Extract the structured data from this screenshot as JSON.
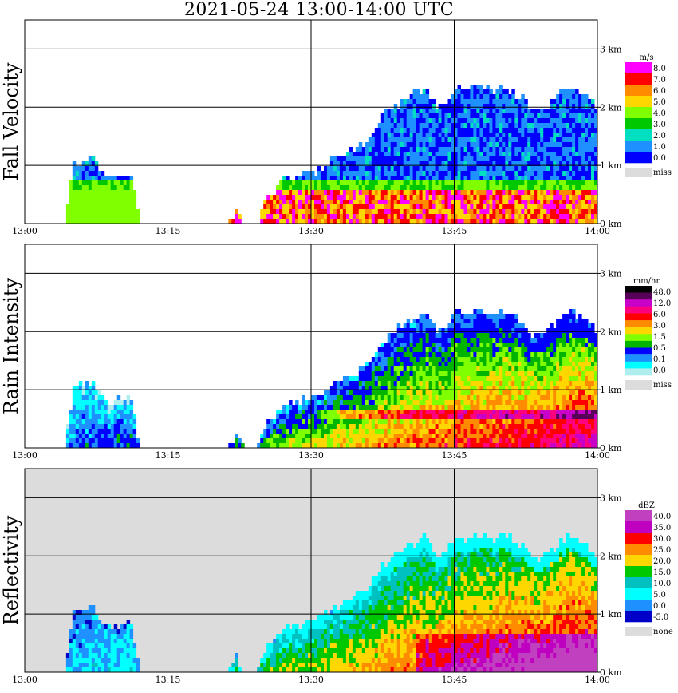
{
  "title": "2021-05-24   13:00-14:00 UTC",
  "chart_data": [
    {
      "type": "heatmap",
      "panel": "fall-velocity",
      "ylabel": "Fall Velocity",
      "background": "#ffffff",
      "x_ticks": [
        "13:00",
        "13:15",
        "13:30",
        "13:45",
        "14:00"
      ],
      "y_ticks": [
        "0 km",
        "1 km",
        "2 km",
        "3 km"
      ],
      "xlim_min": [
        0,
        60
      ],
      "ylim_km": [
        0,
        3.5
      ],
      "legend": {
        "unit": "m/s",
        "labels": [
          "8.0",
          "7.0",
          "6.0",
          "5.0",
          "4.0",
          "3.0",
          "2.0",
          "1.0",
          "0.0"
        ],
        "colors": [
          "#ff00ff",
          "#ff0000",
          "#ff8c00",
          "#ffd700",
          "#7fff00",
          "#00c800",
          "#00e0c0",
          "#1e90ff",
          "#0000ff"
        ],
        "miss_label": "miss",
        "miss_color": "#dcdcdc"
      },
      "echo_top_km": [
        0,
        0,
        0,
        0,
        0,
        1.1,
        1.1,
        1.2,
        0.9,
        0.8,
        0.9,
        0.9,
        0,
        0,
        0,
        0,
        0,
        0,
        0,
        0,
        0,
        0,
        0.3,
        0,
        0,
        0.4,
        0.6,
        0.8,
        0.8,
        0.9,
        0.9,
        1.0,
        1.1,
        1.2,
        1.3,
        1.4,
        1.5,
        1.8,
        2.0,
        2.1,
        2.2,
        2.3,
        2.4,
        2.0,
        2.1,
        2.4,
        2.3,
        2.4,
        2.4,
        2.3,
        2.4,
        2.3,
        2.2,
        2.0,
        2.0,
        2.1,
        2.3,
        2.4,
        2.3,
        2.2,
        2.0
      ],
      "fall_velocity_below_melting": "6.0-8.0",
      "fall_velocity_above_melting": "0.0-2.0"
    },
    {
      "type": "heatmap",
      "panel": "rain-intensity",
      "ylabel": "Rain Intensity",
      "background": "#ffffff",
      "x_ticks": [
        "13:00",
        "13:15",
        "13:30",
        "13:45",
        "14:00"
      ],
      "y_ticks": [
        "0 km",
        "1 km",
        "2 km",
        "3 km"
      ],
      "xlim_min": [
        0,
        60
      ],
      "ylim_km": [
        0,
        3.5
      ],
      "legend": {
        "unit": "mm/hr",
        "labels": [
          "48.0",
          "12.0",
          "6.0",
          "3.0",
          "1.5",
          "0.5",
          "0.1",
          "0.0"
        ],
        "colors": [
          "#000000",
          "#580058",
          "#c800c8",
          "#ff007f",
          "#ff0000",
          "#ff8c00",
          "#ffd700",
          "#7fff00",
          "#00b400",
          "#0000ff",
          "#1e90ff",
          "#00ffff",
          "#afeeee"
        ],
        "miss_label": "miss",
        "miss_color": "#dcdcdc"
      },
      "max_intensity_band_km": 0.6
    },
    {
      "type": "heatmap",
      "panel": "reflectivity",
      "ylabel": "Reflectivity",
      "background": "#dcdcdc",
      "x_ticks": [
        "13:00",
        "13:15",
        "13:30",
        "13:45",
        "14:00"
      ],
      "y_ticks": [
        "0 km",
        "1 km",
        "2 km",
        "3 km"
      ],
      "xlim_min": [
        0,
        60
      ],
      "ylim_km": [
        0,
        3.5
      ],
      "legend": {
        "unit": "dBZ",
        "labels": [
          "40.0",
          "35.0",
          "30.0",
          "25.0",
          "20.0",
          "15.0",
          "10.0",
          "5.0",
          "0.0",
          "-5.0"
        ],
        "colors": [
          "#c040c0",
          "#c000c0",
          "#ff0000",
          "#ff8c00",
          "#ffd700",
          "#00c800",
          "#00c0c0",
          "#00ffff",
          "#1e90ff",
          "#0000c8"
        ],
        "miss_label": "none",
        "miss_color": "#dcdcdc"
      },
      "peak_reflectivity_dbz": "35-40"
    }
  ]
}
